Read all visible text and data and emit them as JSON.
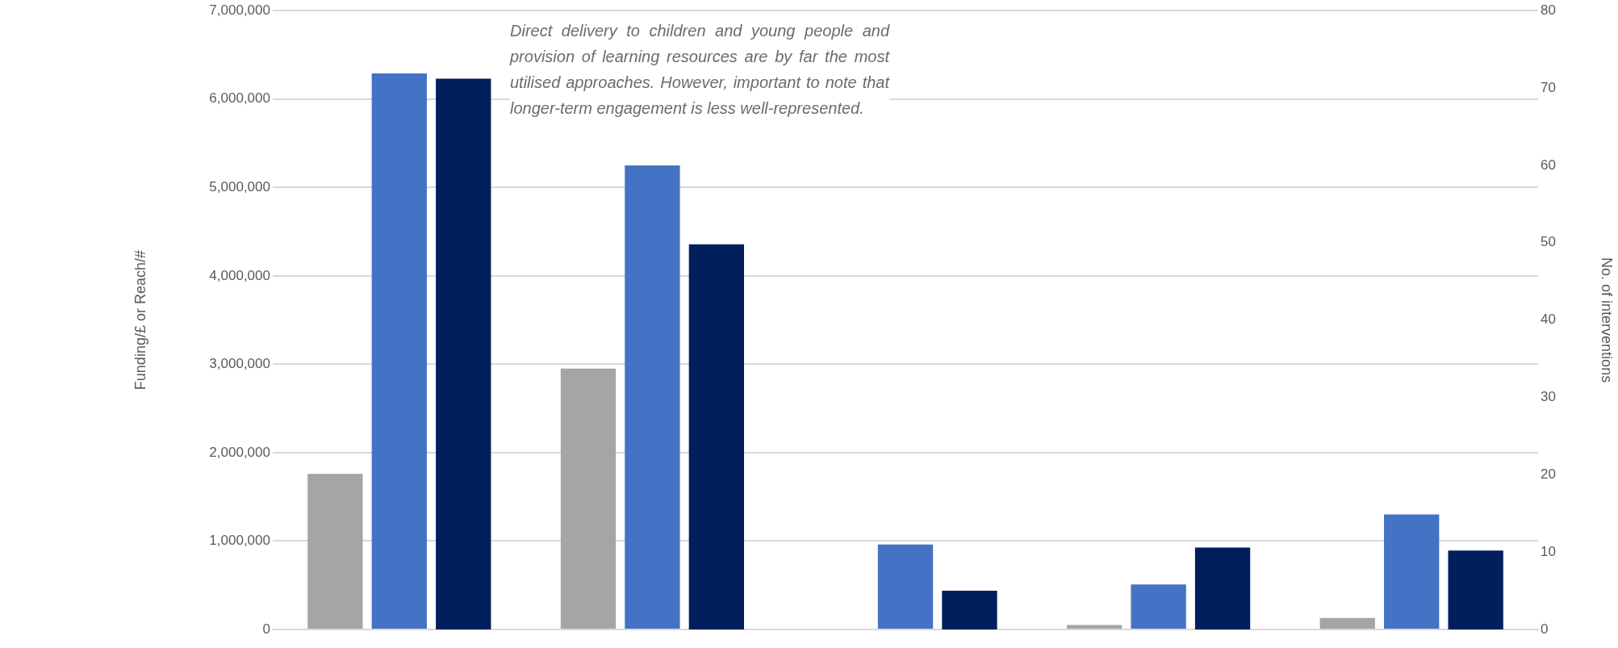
{
  "chart_data": {
    "type": "bar",
    "ylabel": "Funding/£ or Reach/#",
    "y2label": "No. of interventions",
    "annotations": [
      "Direct delivery to children and young people and provision of learning resources are by far the most utilised approaches. However, important to note that longer-term engagement is less well-represented."
    ],
    "categories": [
      null,
      null,
      null,
      null,
      null
    ],
    "series": [
      {
        "color": "#a5a5a5",
        "values": [
          1760000,
          2950000,
          null,
          50000,
          130000
        ]
      },
      {
        "color": "#4472c4",
        "values": [
          6290000,
          5250000,
          960000,
          510000,
          1300000
        ]
      },
      {
        "color": "#001f5c",
        "axis": "y2",
        "values": [
          71.2,
          49.8,
          5.0,
          10.6,
          10.2
        ]
      }
    ],
    "ylim": [
      0,
      7000000
    ],
    "yticks": [
      {
        "value": 0,
        "label": "0"
      },
      {
        "value": 1000000,
        "label": "1,000,000"
      },
      {
        "value": 2000000,
        "label": "2,000,000"
      },
      {
        "value": 3000000,
        "label": "3,000,000"
      },
      {
        "value": 4000000,
        "label": "4,000,000"
      },
      {
        "value": 5000000,
        "label": "5,000,000"
      },
      {
        "value": 6000000,
        "label": "6,000,000"
      },
      {
        "value": 7000000,
        "label": "7,000,000"
      }
    ],
    "y2lim": [
      0,
      80
    ],
    "y2ticks": [
      0,
      10,
      20,
      30,
      40,
      50,
      60,
      70,
      80
    ],
    "grid": "y",
    "legend": false
  }
}
